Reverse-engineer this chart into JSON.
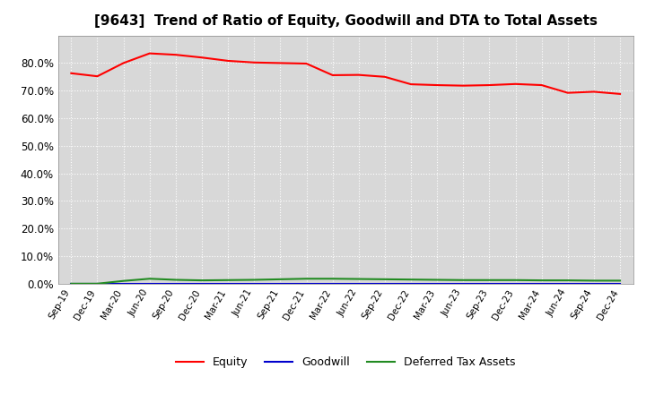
{
  "title": "[9643]  Trend of Ratio of Equity, Goodwill and DTA to Total Assets",
  "x_labels": [
    "Sep-19",
    "Dec-19",
    "Mar-20",
    "Jun-20",
    "Sep-20",
    "Dec-20",
    "Mar-21",
    "Jun-21",
    "Sep-21",
    "Dec-21",
    "Mar-22",
    "Jun-22",
    "Sep-22",
    "Dec-22",
    "Mar-23",
    "Jun-23",
    "Sep-23",
    "Dec-23",
    "Mar-24",
    "Jun-24",
    "Sep-24",
    "Dec-24"
  ],
  "equity": [
    0.763,
    0.752,
    0.8,
    0.835,
    0.83,
    0.82,
    0.808,
    0.802,
    0.8,
    0.798,
    0.756,
    0.757,
    0.75,
    0.723,
    0.72,
    0.718,
    0.72,
    0.724,
    0.72,
    0.692,
    0.696,
    0.688
  ],
  "goodwill": [
    0.0,
    0.0,
    0.0,
    0.0,
    0.0,
    0.0,
    0.0,
    0.0,
    0.0,
    0.0,
    0.0,
    0.0,
    0.0,
    0.0,
    0.0,
    0.0,
    0.0,
    0.0,
    0.0,
    0.0,
    0.0,
    0.0
  ],
  "dta": [
    0.0,
    0.0,
    0.01,
    0.018,
    0.014,
    0.012,
    0.013,
    0.014,
    0.016,
    0.018,
    0.018,
    0.017,
    0.016,
    0.015,
    0.014,
    0.013,
    0.013,
    0.013,
    0.012,
    0.012,
    0.011,
    0.011
  ],
  "equity_color": "#FF0000",
  "goodwill_color": "#0000CD",
  "dta_color": "#228B22",
  "ylim": [
    0.0,
    0.9
  ],
  "yticks": [
    0.0,
    0.1,
    0.2,
    0.3,
    0.4,
    0.5,
    0.6,
    0.7,
    0.8
  ],
  "background_color": "#FFFFFF",
  "plot_bg_color": "#D8D8D8",
  "grid_color": "#FFFFFF",
  "title_fontsize": 11,
  "legend_labels": [
    "Equity",
    "Goodwill",
    "Deferred Tax Assets"
  ]
}
